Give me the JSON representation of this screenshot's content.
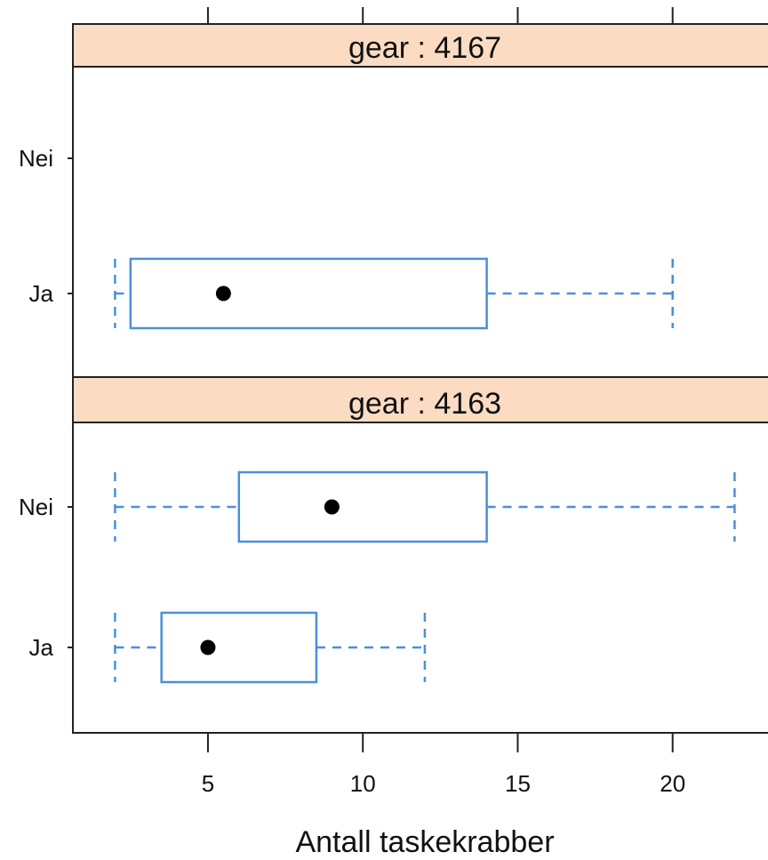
{
  "chart_data": {
    "type": "boxplot",
    "xlabel": "Antall taskekrabber",
    "xticks": [
      5,
      10,
      15,
      20
    ],
    "xlim": [
      0.5,
      23.5
    ],
    "categories": [
      "Nei",
      "Ja"
    ],
    "panels": [
      {
        "strip_label": "gear : 4167",
        "boxes": [
          {
            "category": "Nei",
            "present": false
          },
          {
            "category": "Ja",
            "present": true,
            "whisker_low": 2,
            "q1": 2.5,
            "median": 5.5,
            "q3": 14,
            "whisker_high": 20
          }
        ]
      },
      {
        "strip_label": "gear : 4163",
        "boxes": [
          {
            "category": "Nei",
            "present": true,
            "whisker_low": 2,
            "q1": 6,
            "median": 9,
            "q3": 14,
            "whisker_high": 22
          },
          {
            "category": "Ja",
            "present": true,
            "whisker_low": 2,
            "q1": 3.5,
            "median": 5,
            "q3": 8.5,
            "whisker_high": 12
          }
        ]
      }
    ],
    "colors": {
      "box": "#4a90d9",
      "median": "#000000",
      "strip": "#fbdcc2",
      "frame": "#222222"
    },
    "grid": false,
    "legend": "none"
  }
}
